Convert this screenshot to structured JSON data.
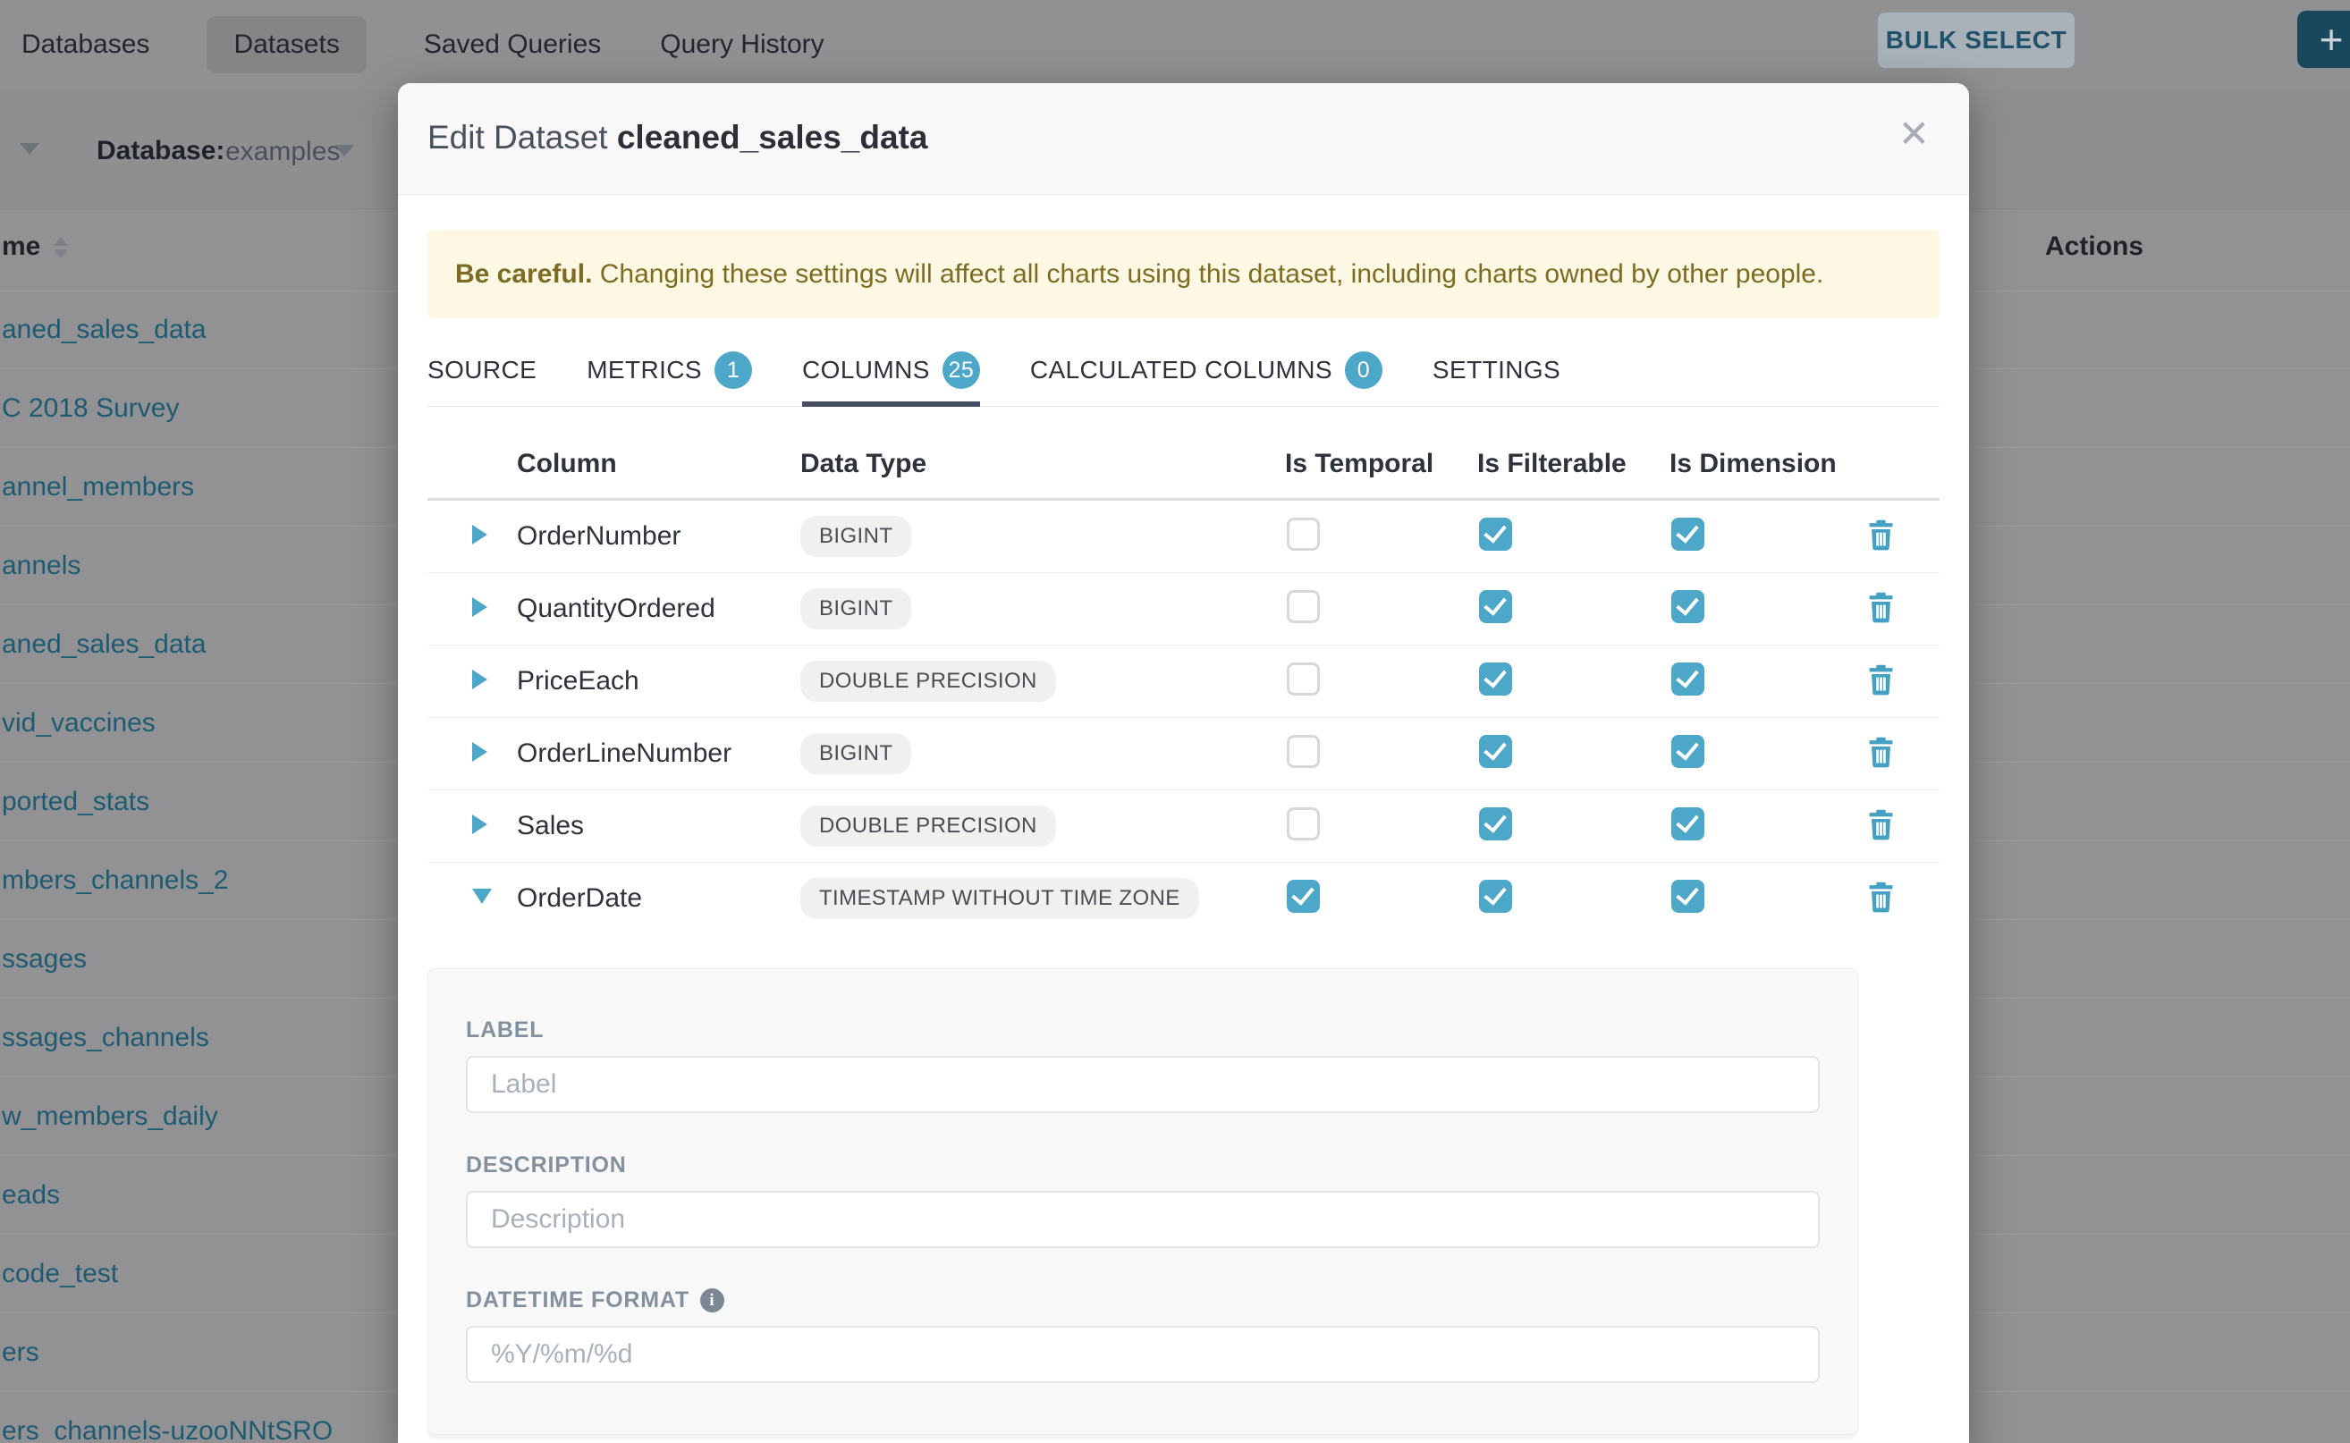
{
  "nav": {
    "items": [
      {
        "label": "Databases",
        "active": false
      },
      {
        "label": "Datasets",
        "active": true
      },
      {
        "label": "Saved Queries",
        "active": false
      },
      {
        "label": "Query History",
        "active": false
      }
    ],
    "bulk_select_label": "BULK SELECT",
    "add_button_label": "+"
  },
  "background": {
    "database_label": "Database:",
    "database_value": "examples",
    "table": {
      "name_header": "me",
      "actions_header": "Actions",
      "rows": [
        "aned_sales_data",
        "C 2018 Survey",
        "annel_members",
        "annels",
        "aned_sales_data",
        "vid_vaccines",
        "ported_stats",
        "mbers_channels_2",
        "ssages",
        "ssages_channels",
        "w_members_daily",
        "eads",
        "code_test",
        "ers",
        "ers_channels-uzooNNtSRO"
      ]
    }
  },
  "modal": {
    "title_prefix": "Edit Dataset",
    "title_dataset": "cleaned_sales_data",
    "close_icon": "✕",
    "warning_bold": "Be careful.",
    "warning_text": " Changing these settings will affect all charts using this dataset, including charts owned by other people.",
    "tabs": [
      {
        "label": "SOURCE",
        "badge": null,
        "active": false
      },
      {
        "label": "METRICS",
        "badge": "1",
        "active": false
      },
      {
        "label": "COLUMNS",
        "badge": "25",
        "active": true
      },
      {
        "label": "CALCULATED COLUMNS",
        "badge": "0",
        "active": false
      },
      {
        "label": "SETTINGS",
        "badge": null,
        "active": false
      }
    ],
    "columns_table": {
      "headers": [
        "Column",
        "Data Type",
        "Is Temporal",
        "Is Filterable",
        "Is Dimension"
      ],
      "rows": [
        {
          "name": "OrderNumber",
          "type": "BIGINT",
          "is_temporal": false,
          "is_filterable": true,
          "is_dimension": true,
          "expanded": false
        },
        {
          "name": "QuantityOrdered",
          "type": "BIGINT",
          "is_temporal": false,
          "is_filterable": true,
          "is_dimension": true,
          "expanded": false
        },
        {
          "name": "PriceEach",
          "type": "DOUBLE PRECISION",
          "is_temporal": false,
          "is_filterable": true,
          "is_dimension": true,
          "expanded": false
        },
        {
          "name": "OrderLineNumber",
          "type": "BIGINT",
          "is_temporal": false,
          "is_filterable": true,
          "is_dimension": true,
          "expanded": false
        },
        {
          "name": "Sales",
          "type": "DOUBLE PRECISION",
          "is_temporal": false,
          "is_filterable": true,
          "is_dimension": true,
          "expanded": false
        },
        {
          "name": "OrderDate",
          "type": "TIMESTAMP WITHOUT TIME ZONE",
          "is_temporal": true,
          "is_filterable": true,
          "is_dimension": true,
          "expanded": true
        }
      ]
    },
    "expanded_editor": {
      "label_label": "LABEL",
      "label_placeholder": "Label",
      "description_label": "DESCRIPTION",
      "description_placeholder": "Description",
      "datetime_label": "DATETIME FORMAT",
      "datetime_placeholder": "%Y/%m/%d"
    },
    "colors": {
      "accent_blue": "#4da7c9",
      "tab_underline": "#454e63",
      "warning_bg": "#fcf8e3",
      "warning_text": "#7d6b22",
      "link_teal": "#1d5b72"
    }
  }
}
